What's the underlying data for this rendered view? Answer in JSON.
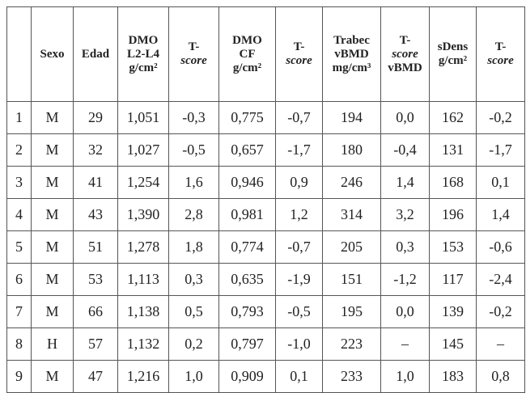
{
  "table": {
    "header": [
      [
        "",
        ""
      ],
      [
        "Sexo"
      ],
      [
        "Edad"
      ],
      [
        "DMO",
        "L2-L4",
        "g/cm²"
      ],
      [
        "T-",
        "score"
      ],
      [
        "DMO",
        "CF",
        "g/cm²"
      ],
      [
        "T-",
        "score"
      ],
      [
        "Trabec",
        "vBMD",
        "mg/cm³"
      ],
      [
        "T-",
        "score",
        "vBMD"
      ],
      [
        "sDens",
        "g/cm²"
      ],
      [
        "T-",
        "score"
      ]
    ],
    "rows": [
      [
        "1",
        "M",
        "29",
        "1,051",
        "-0,3",
        "0,775",
        "-0,7",
        "194",
        "0,0",
        "162",
        "-0,2"
      ],
      [
        "2",
        "M",
        "32",
        "1,027",
        "-0,5",
        "0,657",
        "-1,7",
        "180",
        "-0,4",
        "131",
        "-1,7"
      ],
      [
        "3",
        "M",
        "41",
        "1,254",
        "1,6",
        "0,946",
        "0,9",
        "246",
        "1,4",
        "168",
        "0,1"
      ],
      [
        "4",
        "M",
        "43",
        "1,390",
        "2,8",
        "0,981",
        "1,2",
        "314",
        "3,2",
        "196",
        "1,4"
      ],
      [
        "5",
        "M",
        "51",
        "1,278",
        "1,8",
        "0,774",
        "-0,7",
        "205",
        "0,3",
        "153",
        "-0,6"
      ],
      [
        "6",
        "M",
        "53",
        "1,113",
        "0,3",
        "0,635",
        "-1,9",
        "151",
        "-1,2",
        "117",
        "-2,4"
      ],
      [
        "7",
        "M",
        "66",
        "1,138",
        "0,5",
        "0,793",
        "-0,5",
        "195",
        "0,0",
        "139",
        "-0,2"
      ],
      [
        "8",
        "H",
        "57",
        "1,132",
        "0,2",
        "0,797",
        "-1,0",
        "223",
        "–",
        "145",
        "–"
      ],
      [
        "9",
        "M",
        "47",
        "1,216",
        "1,0",
        "0,909",
        "0,1",
        "233",
        "1,0",
        "183",
        "0,8"
      ]
    ]
  }
}
